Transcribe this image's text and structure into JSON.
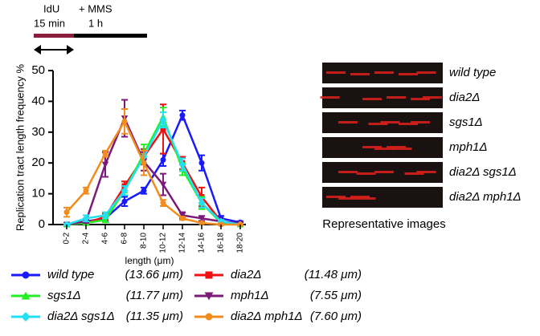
{
  "timeline": {
    "pulse": "IdU",
    "pulse_time": "15 min",
    "chase": "+ MMS",
    "chase_time": "1 h"
  },
  "chart_data": {
    "type": "line",
    "y_label": "Replication tract length frequency %",
    "x_label": "length (μm)",
    "categories": [
      "0-2",
      "2-4",
      "4-6",
      "6-8",
      "8-10",
      "10-12",
      "12-14",
      "14-16",
      "16-18",
      "18-20"
    ],
    "ylim": [
      0,
      50
    ],
    "yticks": [
      0,
      10,
      20,
      30,
      40,
      50
    ],
    "series": [
      {
        "name": "wild type",
        "mean_label": "(13.66 μm)",
        "color": "#1a1aff",
        "marker": "circle",
        "values": [
          0,
          1,
          2,
          7.5,
          11,
          21,
          35.5,
          20,
          2,
          0.7
        ],
        "errors": [
          0.3,
          0.5,
          0.8,
          1.5,
          1,
          2,
          1.5,
          2.5,
          0.8,
          0.4
        ]
      },
      {
        "name": "dia2Δ",
        "mean_label": "(11.48 μm)",
        "color": "#ee1111",
        "marker": "square",
        "values": [
          0,
          0.5,
          2.5,
          12.5,
          22,
          31,
          20,
          9,
          1,
          0
        ],
        "errors": [
          0.3,
          0.5,
          1,
          1.5,
          2.5,
          8,
          2,
          3,
          0.5,
          0.2
        ]
      },
      {
        "name": "sgs1Δ",
        "mean_label": "(11.77 μm)",
        "color": "#22ee22",
        "marker": "triangle",
        "values": [
          0,
          0.5,
          1.5,
          11,
          23,
          35,
          18,
          7,
          0.5,
          0
        ],
        "errors": [
          0.3,
          0.5,
          0.8,
          1.5,
          3,
          3,
          2,
          2,
          0.4,
          0.2
        ]
      },
      {
        "name": "mph1Δ",
        "mean_label": "(7.55 μm)",
        "color": "#7b1a7b",
        "marker": "triangle-down",
        "values": [
          0,
          1,
          19.5,
          34.5,
          20.5,
          13,
          3,
          2,
          1,
          0.3
        ],
        "errors": [
          0.3,
          0.5,
          4,
          6,
          3,
          3.5,
          1,
          0.8,
          0.5,
          0.3
        ]
      },
      {
        "name": "dia2Δ sgs1Δ",
        "mean_label": "(11.35 μm)",
        "color": "#22e0f0",
        "marker": "diamond",
        "values": [
          0,
          2,
          3,
          11,
          22,
          34,
          19.5,
          7,
          1,
          0
        ],
        "errors": [
          0.3,
          1,
          1,
          1.5,
          2,
          2.5,
          2,
          1.5,
          0.5,
          0.2
        ]
      },
      {
        "name": "dia2Δ mph1Δ",
        "mean_label": "(7.60 μm)",
        "color": "#f28c1f",
        "marker": "circle",
        "values": [
          4,
          11,
          23,
          33.5,
          20,
          7,
          2,
          0.5,
          0,
          0
        ],
        "errors": [
          1.5,
          1,
          1,
          4,
          4,
          1,
          0.5,
          0.3,
          0.2,
          0.2
        ]
      }
    ]
  },
  "images": {
    "title": "Representative images",
    "labels": [
      "wild type",
      "dia2Δ",
      "sgs1Δ",
      "mph1Δ",
      "dia2Δ sgs1Δ",
      "dia2Δ mph1Δ"
    ]
  }
}
